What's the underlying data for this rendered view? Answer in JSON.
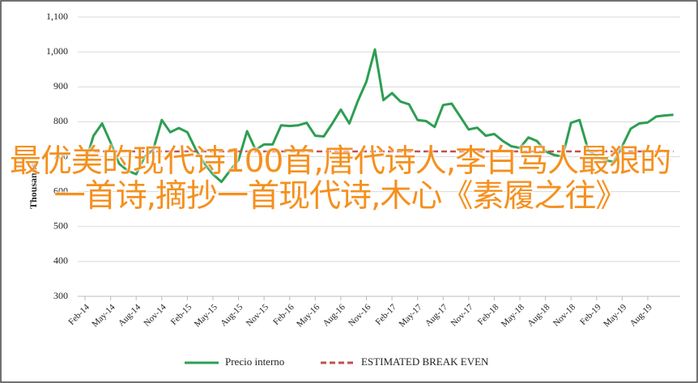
{
  "chart_data": {
    "type": "line",
    "ylabel": "Thousands",
    "categories": [
      "Feb-14",
      null,
      null,
      "May-14",
      null,
      null,
      "Aug-14",
      null,
      null,
      "Nov-14",
      null,
      null,
      "Feb-15",
      null,
      null,
      "May-15",
      null,
      null,
      "Aug-15",
      null,
      null,
      "Nov-15",
      null,
      null,
      "Feb-16",
      null,
      null,
      "May-16",
      null,
      null,
      "Aug-16",
      null,
      null,
      "Nov-16",
      null,
      null,
      "Feb-17",
      null,
      null,
      "May-17",
      null,
      null,
      "Aug-17",
      null,
      null,
      "Nov-17",
      null,
      null,
      "Feb-18",
      null,
      null,
      "May-18",
      null,
      null,
      "Aug-18",
      null,
      null,
      "Nov-18",
      null,
      null,
      "Feb-19",
      null,
      null,
      "May-19",
      null,
      null,
      "Aug-19",
      null,
      null,
      null
    ],
    "series": [
      {
        "name": "Precio interno",
        "color": "#2e9e52",
        "dash": false,
        "values": [
          680,
          760,
          795,
          740,
          680,
          660,
          650,
          700,
          720,
          805,
          770,
          782,
          770,
          720,
          680,
          650,
          628,
          660,
          690,
          773,
          720,
          735,
          735,
          790,
          788,
          790,
          797,
          760,
          758,
          795,
          835,
          795,
          860,
          915,
          1007,
          862,
          882,
          858,
          850,
          805,
          802,
          785,
          848,
          852,
          815,
          778,
          783,
          760,
          765,
          745,
          730,
          725,
          755,
          745,
          715,
          705,
          700,
          797,
          805,
          720,
          700,
          690,
          685,
          730,
          780,
          795,
          798,
          815,
          818,
          820
        ]
      },
      {
        "name": "ESTIMATED BREAK EVEN",
        "color": "#c0504d",
        "dash": true,
        "values": [
          715,
          715,
          715,
          715,
          715,
          715,
          715,
          715,
          715,
          715,
          715,
          715,
          715,
          715,
          715,
          715,
          715,
          715,
          715,
          715,
          715,
          715,
          715,
          715,
          715,
          715,
          715,
          715,
          715,
          715,
          715,
          715,
          715,
          715,
          715,
          715,
          715,
          715,
          715,
          715,
          715,
          715,
          715,
          715,
          715,
          715,
          715,
          715,
          715,
          715,
          715,
          715,
          715,
          715,
          715,
          715,
          715,
          715,
          715,
          715,
          715,
          715,
          715,
          715,
          715,
          715,
          715,
          715,
          715,
          715
        ]
      }
    ],
    "ylim": [
      300,
      1100
    ],
    "yticks": [
      300,
      400,
      500,
      600,
      700,
      800,
      900,
      {
        "value": 1000,
        "label": "1,000"
      },
      {
        "value": 1100,
        "label": "1,100"
      }
    ],
    "grid": true,
    "legend": "bottom"
  },
  "overlay_text": "最优美的现代诗100首,唐代诗人,李白骂人最狠的一首诗,摘抄一首现代诗,木心《素履之往》"
}
